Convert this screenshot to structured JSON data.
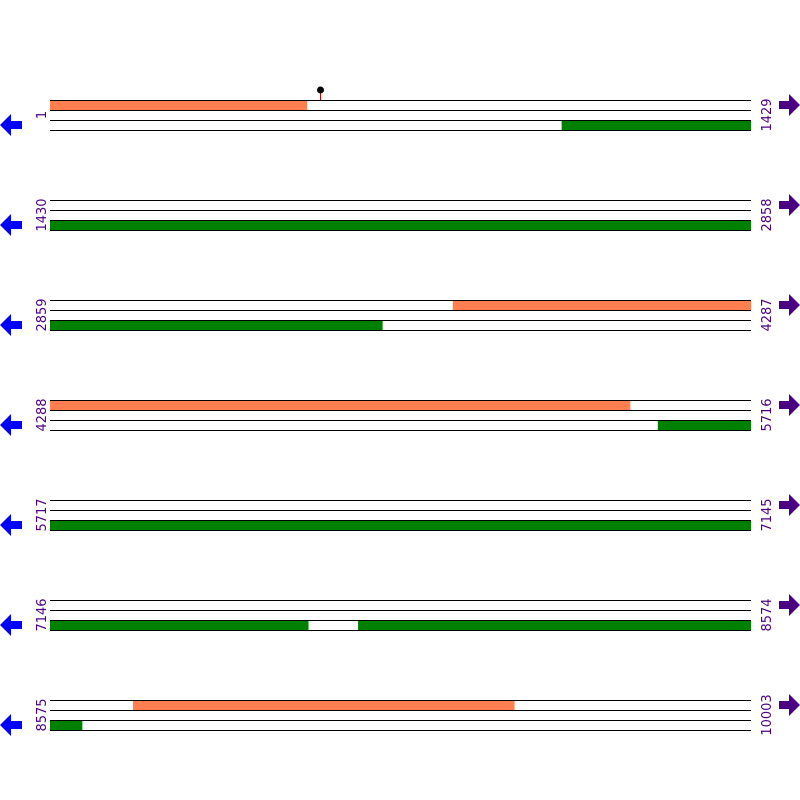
{
  "bp_per_row": 1429,
  "colors": {
    "forward_feature": "#ff7f50",
    "reverse_feature": "#008000",
    "strand_line": "#000000",
    "label": "#4b0082",
    "left_arrow": "#0000ff",
    "right_arrow": "#4b0082",
    "marker_stem": "#cc0000",
    "marker_head": "#000000"
  },
  "rows": [
    {
      "start": "1",
      "end": "1429",
      "forward": [
        [
          1,
          524
        ]
      ],
      "reverse": [
        [
          1044,
          1429
        ]
      ],
      "markers": [
        552
      ]
    },
    {
      "start": "1430",
      "end": "2858",
      "forward": [],
      "reverse": [
        [
          1430,
          2858
        ]
      ],
      "markers": []
    },
    {
      "start": "2859",
      "end": "4287",
      "forward": [
        [
          3680,
          4287
        ]
      ],
      "reverse": [
        [
          2859,
          3536
        ]
      ],
      "markers": []
    },
    {
      "start": "4288",
      "end": "5716",
      "forward": [
        [
          4288,
          5470
        ]
      ],
      "reverse": [
        [
          5527,
          5716
        ]
      ],
      "markers": []
    },
    {
      "start": "5717",
      "end": "7145",
      "forward": [],
      "reverse": [
        [
          5717,
          7145
        ]
      ],
      "markers": []
    },
    {
      "start": "7146",
      "end": "8574",
      "forward": [],
      "reverse": [
        [
          7146,
          7672
        ],
        [
          7774,
          8574
        ]
      ],
      "markers": []
    },
    {
      "start": "8575",
      "end": "10003",
      "forward": [
        [
          8744,
          9521
        ]
      ],
      "reverse": [
        [
          8575,
          8640
        ]
      ],
      "markers": []
    }
  ]
}
